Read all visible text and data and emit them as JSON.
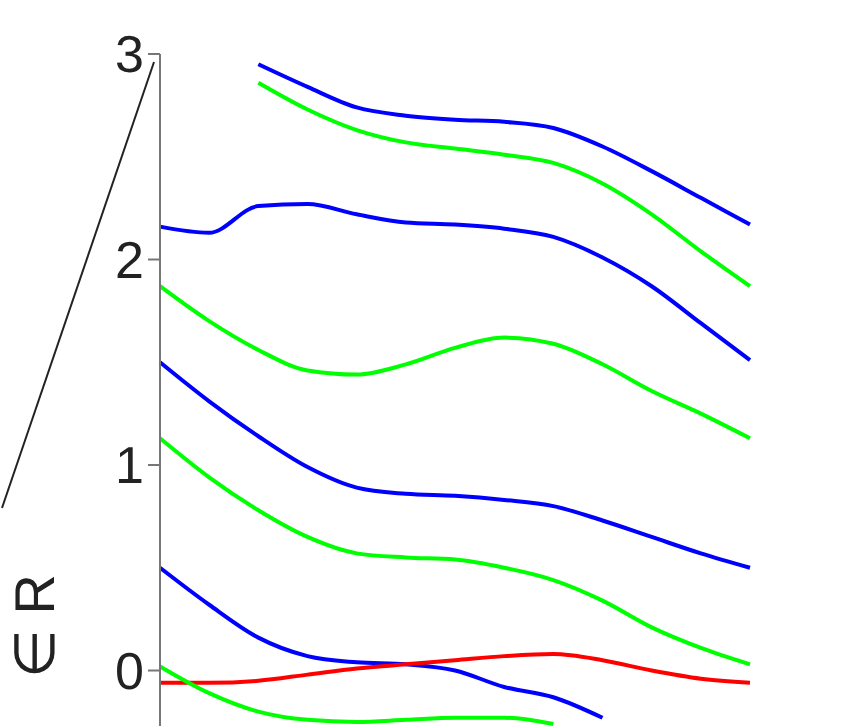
{
  "chart_data": {
    "type": "line",
    "ylabel": "∈ R",
    "categories": [
      null,
      null,
      null,
      null,
      null,
      null,
      null,
      null,
      null,
      null,
      null,
      null,
      null
    ],
    "ylim": [
      -0.27,
      3
    ],
    "yticks": [
      0,
      1,
      2,
      3
    ],
    "marker": "none",
    "line_style": "solid",
    "tick_labels": "y",
    "series": [
      {
        "color": "#0000ff",
        "values": [
          null,
          null,
          2.95,
          2.84,
          2.74,
          2.7,
          2.68,
          2.67,
          2.64,
          2.55,
          2.43,
          2.3,
          2.17
        ]
      },
      {
        "color": "#00ff00",
        "values": [
          null,
          null,
          2.86,
          2.73,
          2.63,
          2.57,
          2.54,
          2.51,
          2.47,
          2.37,
          2.22,
          2.04,
          1.87
        ]
      },
      {
        "color": "#0000ff",
        "values": [
          2.16,
          2.13,
          2.26,
          2.27,
          2.22,
          2.18,
          2.17,
          2.15,
          2.11,
          2.01,
          1.87,
          1.69,
          1.51
        ]
      },
      {
        "color": "#00ff00",
        "values": [
          1.87,
          1.7,
          1.56,
          1.46,
          1.44,
          1.49,
          1.57,
          1.62,
          1.59,
          1.49,
          1.36,
          1.25,
          1.13
        ]
      },
      {
        "color": "#0000ff",
        "values": [
          1.5,
          1.31,
          1.14,
          0.99,
          0.89,
          0.86,
          0.85,
          0.83,
          0.8,
          0.73,
          0.65,
          0.57,
          0.5
        ]
      },
      {
        "color": "#00ff00",
        "values": [
          1.13,
          0.94,
          0.78,
          0.65,
          0.57,
          0.55,
          0.54,
          0.5,
          0.44,
          0.34,
          0.21,
          0.11,
          0.03
        ]
      },
      {
        "color": "#0000ff",
        "values": [
          0.5,
          0.32,
          0.16,
          0.07,
          0.04,
          0.03,
          0,
          -0.08,
          -0.13,
          -0.23,
          null,
          null,
          null
        ]
      },
      {
        "color": "#ff0000",
        "values": [
          -0.06,
          -0.06,
          -0.05,
          -0.02,
          0.01,
          0.03,
          0.05,
          0.07,
          0.08,
          0.05,
          0,
          -0.04,
          -0.06
        ]
      },
      {
        "color": "#00ff00",
        "values": [
          0.02,
          -0.11,
          -0.2,
          -0.24,
          -0.25,
          -0.24,
          -0.23,
          -0.23,
          -0.26,
          null,
          null,
          null,
          null
        ]
      }
    ]
  }
}
